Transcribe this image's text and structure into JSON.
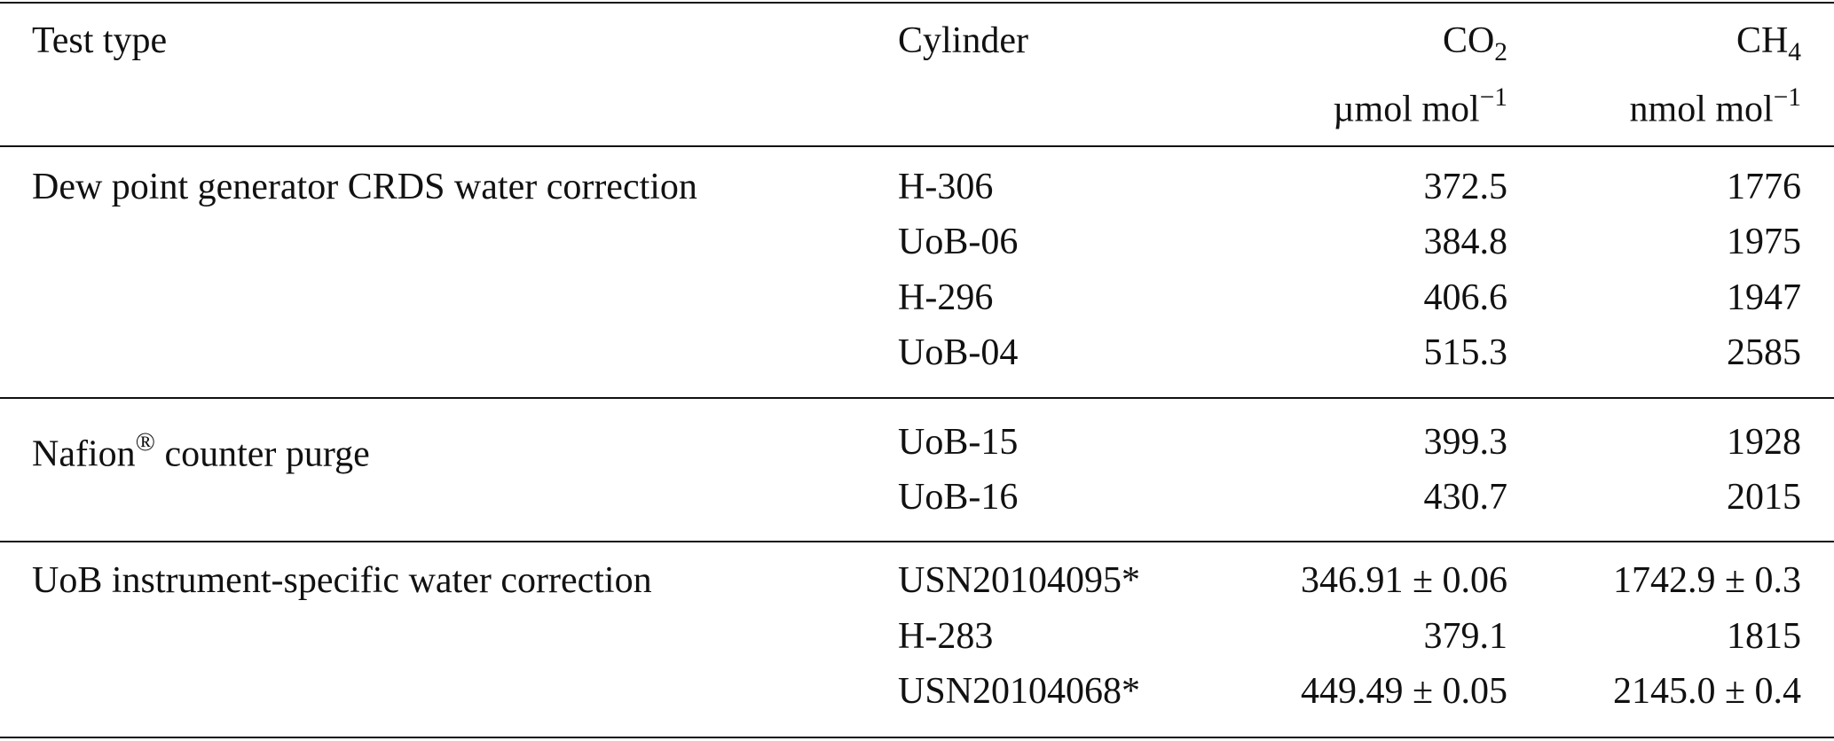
{
  "header": {
    "test_type": "Test type",
    "cylinder": "Cylinder",
    "co2": {
      "name": "CO",
      "sub": "2",
      "unit": "µmol mol",
      "exp": "−1"
    },
    "ch4": {
      "name": "CH",
      "sub": "4",
      "unit": "nmol mol",
      "exp": "−1"
    }
  },
  "groups": [
    {
      "test_type": {
        "text": "Dew point generator CRDS water correction"
      },
      "rows": [
        [
          "H-306",
          "372.5",
          "1776"
        ],
        [
          "UoB-06",
          "384.8",
          "1975"
        ],
        [
          "H-296",
          "406.6",
          "1947"
        ],
        [
          "UoB-04",
          "515.3",
          "2585"
        ]
      ]
    },
    {
      "test_type": {
        "text": "Nafion",
        "sup": "®",
        "rest": " counter purge"
      },
      "rows": [
        [
          "UoB-15",
          "399.3",
          "1928"
        ],
        [
          "UoB-16",
          "430.7",
          "2015"
        ]
      ]
    },
    {
      "test_type": {
        "text": "UoB instrument-specific water correction"
      },
      "rows": [
        [
          "USN20104095*",
          "346.91 ± 0.06",
          "1742.9 ± 0.3"
        ],
        [
          "H-283",
          "379.1",
          "1815"
        ],
        [
          "USN20104068*",
          "449.49 ± 0.05",
          "2145.0 ± 0.4"
        ]
      ]
    }
  ]
}
